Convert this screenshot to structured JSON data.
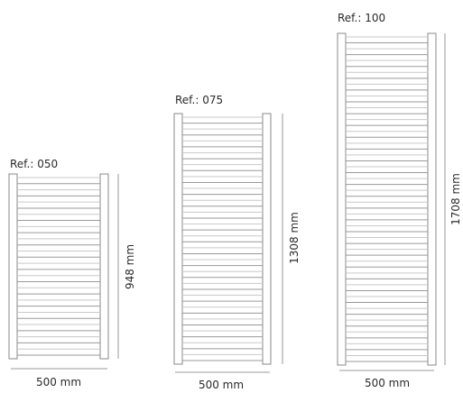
{
  "radiators": [
    {
      "ref": "Ref.: 050",
      "width": "500 mm",
      "height": "948 mm",
      "bars": 30
    },
    {
      "ref": "Ref.: 075",
      "width": "500 mm",
      "height": "1308 mm",
      "bars": 42
    },
    {
      "ref": "Ref.: 100",
      "width": "500 mm",
      "height": "1708 mm",
      "bars": 56
    }
  ],
  "colors": {
    "frame": "#8a8a8a",
    "bar_light": "#c9c9c9",
    "bar_dark": "#9a9a9a",
    "dimension_line": "#9a9a9a",
    "text": "#2a2a2a"
  }
}
